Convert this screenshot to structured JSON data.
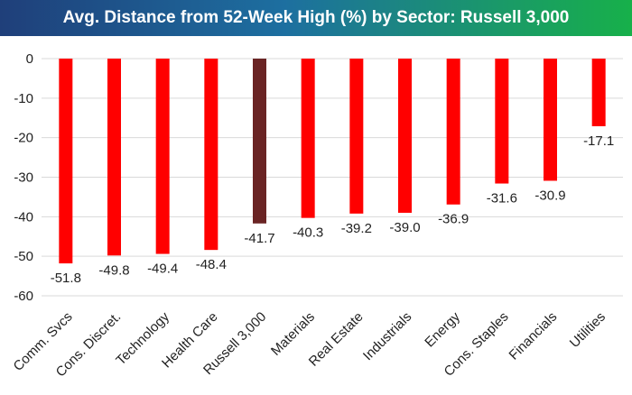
{
  "title": "Avg. Distance from 52-Week High (%) by Sector: Russell 3,000",
  "colors": {
    "bar": "#ff0000",
    "highlight": "#6a2424"
  },
  "chart_data": {
    "type": "bar",
    "title": "Avg. Distance from 52-Week High (%) by Sector: Russell 3,000",
    "categories": [
      "Comm. Svcs",
      "Cons. Discret.",
      "Technology",
      "Health Care",
      "Russell 3,000",
      "Materials",
      "Real Estate",
      "Industrials",
      "Energy",
      "Cons. Staples",
      "Financials",
      "Utilities"
    ],
    "values": [
      -51.8,
      -49.8,
      -49.4,
      -48.4,
      -41.7,
      -40.3,
      -39.2,
      -39.0,
      -36.9,
      -31.6,
      -30.9,
      -17.1
    ],
    "data_labels": [
      "-51.8",
      "-49.8",
      "-49.4",
      "-48.4",
      "-41.7",
      "-40.3",
      "-39.2",
      "-39.0",
      "-36.9",
      "-31.6",
      "-30.9",
      "-17.1"
    ],
    "highlight_category": "Russell 3,000",
    "ylim": [
      -60,
      0
    ],
    "yticks": [
      0,
      -10,
      -20,
      -30,
      -40,
      -50,
      -60
    ],
    "ytick_labels": [
      "0",
      "-10",
      "-20",
      "-30",
      "-40",
      "-50",
      "-60"
    ],
    "xlabel": "",
    "ylabel": "",
    "grid": true
  }
}
